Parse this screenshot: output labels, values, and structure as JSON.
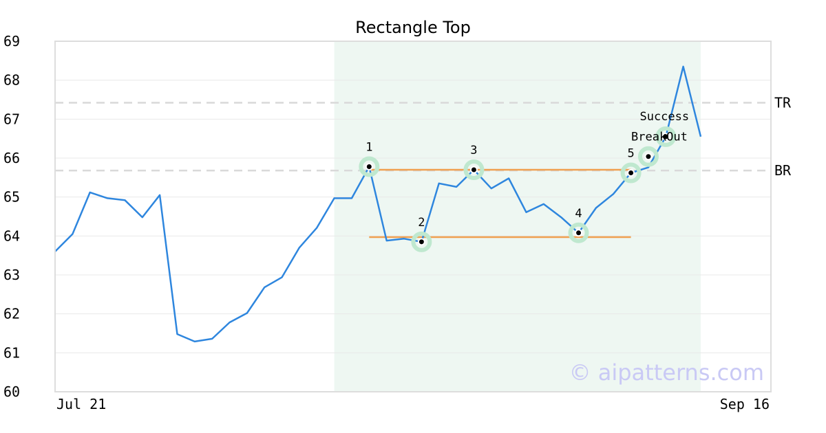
{
  "chart_data": {
    "type": "line",
    "title": "Rectangle Top",
    "xlabel": "",
    "ylabel": "",
    "ylim": [
      60,
      69
    ],
    "y_ticks": [
      "60",
      "61",
      "62",
      "63",
      "64",
      "65",
      "66",
      "67",
      "68",
      "69"
    ],
    "x_tick_labels": [
      "Jul 21",
      "Sep 16"
    ],
    "grid": "horizontal",
    "colors": {
      "line": "#2e86de",
      "rectangle_lines": "#f0a050",
      "highlight": "#eef7f2",
      "marker_ring": "#bfe8cf",
      "ref_lines": "#d9d9d9"
    },
    "series": [
      {
        "values": [
          63.6,
          64.05,
          65.12,
          64.97,
          64.92,
          64.48,
          65.05,
          61.48,
          61.29,
          61.36,
          61.78,
          62.02,
          62.68,
          62.94,
          63.7,
          64.21,
          64.97,
          64.97,
          65.78,
          63.88,
          63.93,
          63.85,
          65.35,
          65.26,
          65.7,
          65.22,
          65.48,
          64.61,
          64.82,
          64.48,
          64.08,
          64.72,
          65.08,
          65.62,
          65.76,
          66.55,
          68.35,
          66.55
        ]
      }
    ],
    "highlight_range": {
      "from_index": 16,
      "to_index": 37
    },
    "reference_lines": [
      {
        "label": "TR",
        "value": 67.42
      },
      {
        "label": "BR",
        "value": 65.68
      }
    ],
    "rectangle_lines": [
      {
        "from_index": 18,
        "to_index": 33,
        "value": 65.7
      },
      {
        "from_index": 18,
        "to_index": 33,
        "value": 63.97
      }
    ],
    "pattern_points": [
      {
        "label": "1",
        "index": 18,
        "value": 65.78
      },
      {
        "label": "2",
        "index": 21,
        "value": 63.85
      },
      {
        "label": "3",
        "index": 24,
        "value": 65.7
      },
      {
        "label": "4",
        "index": 30,
        "value": 64.08
      },
      {
        "label": "5",
        "index": 33,
        "value": 65.62
      }
    ],
    "annotations": [
      {
        "label": "BreakOut",
        "index": 34,
        "value": 66.04
      },
      {
        "label": "Success",
        "index": 35,
        "value": 66.55
      }
    ],
    "watermark": "© aipatterns.com"
  }
}
